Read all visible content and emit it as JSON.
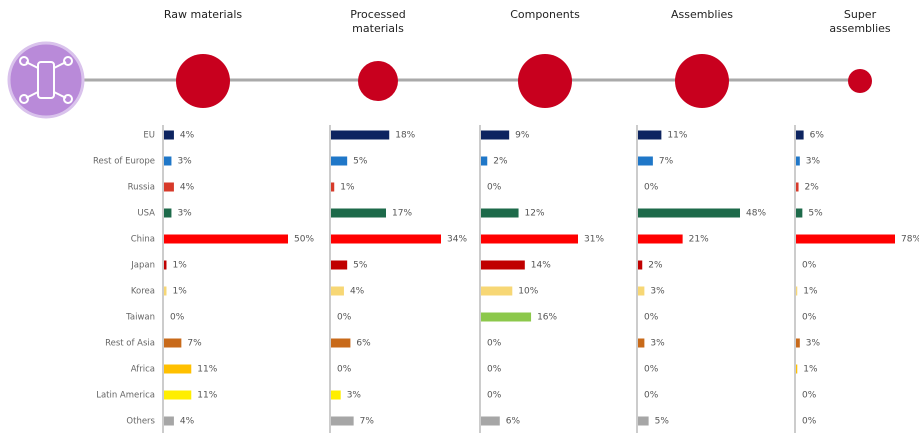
{
  "chart_data": {
    "type": "bar",
    "categories": [
      "EU",
      "Rest of Europe",
      "Russia",
      "USA",
      "China",
      "Japan",
      "Korea",
      "Taiwan",
      "Rest of Asia",
      "Africa",
      "Latin America",
      "Others"
    ],
    "colors": [
      "#0d2460",
      "#1f77c8",
      "#d73a2a",
      "#1d6a4a",
      "#ff0000",
      "#c00000",
      "#f7d775",
      "#8cc84b",
      "#c86a1a",
      "#ffc000",
      "#ffee00",
      "#a6a6a6"
    ],
    "series": [
      {
        "name": "Raw materials",
        "values": [
          4,
          3,
          4,
          3,
          50,
          1,
          1,
          0,
          7,
          11,
          11,
          4
        ],
        "value_labels": [
          "4%",
          "3%",
          "4%",
          "3%",
          "50%",
          "1%",
          "1%",
          "0%",
          "7%",
          "11%",
          "11%",
          "4%"
        ]
      },
      {
        "name": "Processed materials",
        "values": [
          18,
          5,
          1,
          17,
          34,
          5,
          4,
          0,
          6,
          0,
          3,
          7
        ],
        "value_labels": [
          "18%",
          "5%",
          "1%",
          "17%",
          "34%",
          "5%",
          "4%",
          "0%",
          "6%",
          "0%",
          "3%",
          "7%"
        ]
      },
      {
        "name": "Components",
        "values": [
          9,
          2,
          0,
          12,
          31,
          14,
          10,
          16,
          0,
          0,
          0,
          6
        ],
        "value_labels": [
          "9%",
          "2%",
          "0%",
          "12%",
          "31%",
          "14%",
          "10%",
          "16%",
          "0%",
          "0%",
          "0%",
          "6%"
        ]
      },
      {
        "name": "Assemblies",
        "values": [
          11,
          7,
          0,
          48,
          21,
          2,
          3,
          0,
          3,
          0,
          0,
          5
        ],
        "value_labels": [
          "11%",
          "7%",
          "0%",
          "48%",
          "21%",
          "2%",
          "3%",
          "0%",
          "3%",
          "0%",
          "0%",
          "5%"
        ]
      },
      {
        "name": "Super assemblies",
        "values": [
          6,
          3,
          2,
          5,
          78,
          0,
          1,
          0,
          3,
          1,
          0,
          0
        ],
        "value_labels": [
          "6%",
          "3%",
          "2%",
          "5%",
          "78%",
          "0%",
          "1%",
          "0%",
          "3%",
          "1%",
          "0%",
          "0%"
        ]
      }
    ]
  }
}
